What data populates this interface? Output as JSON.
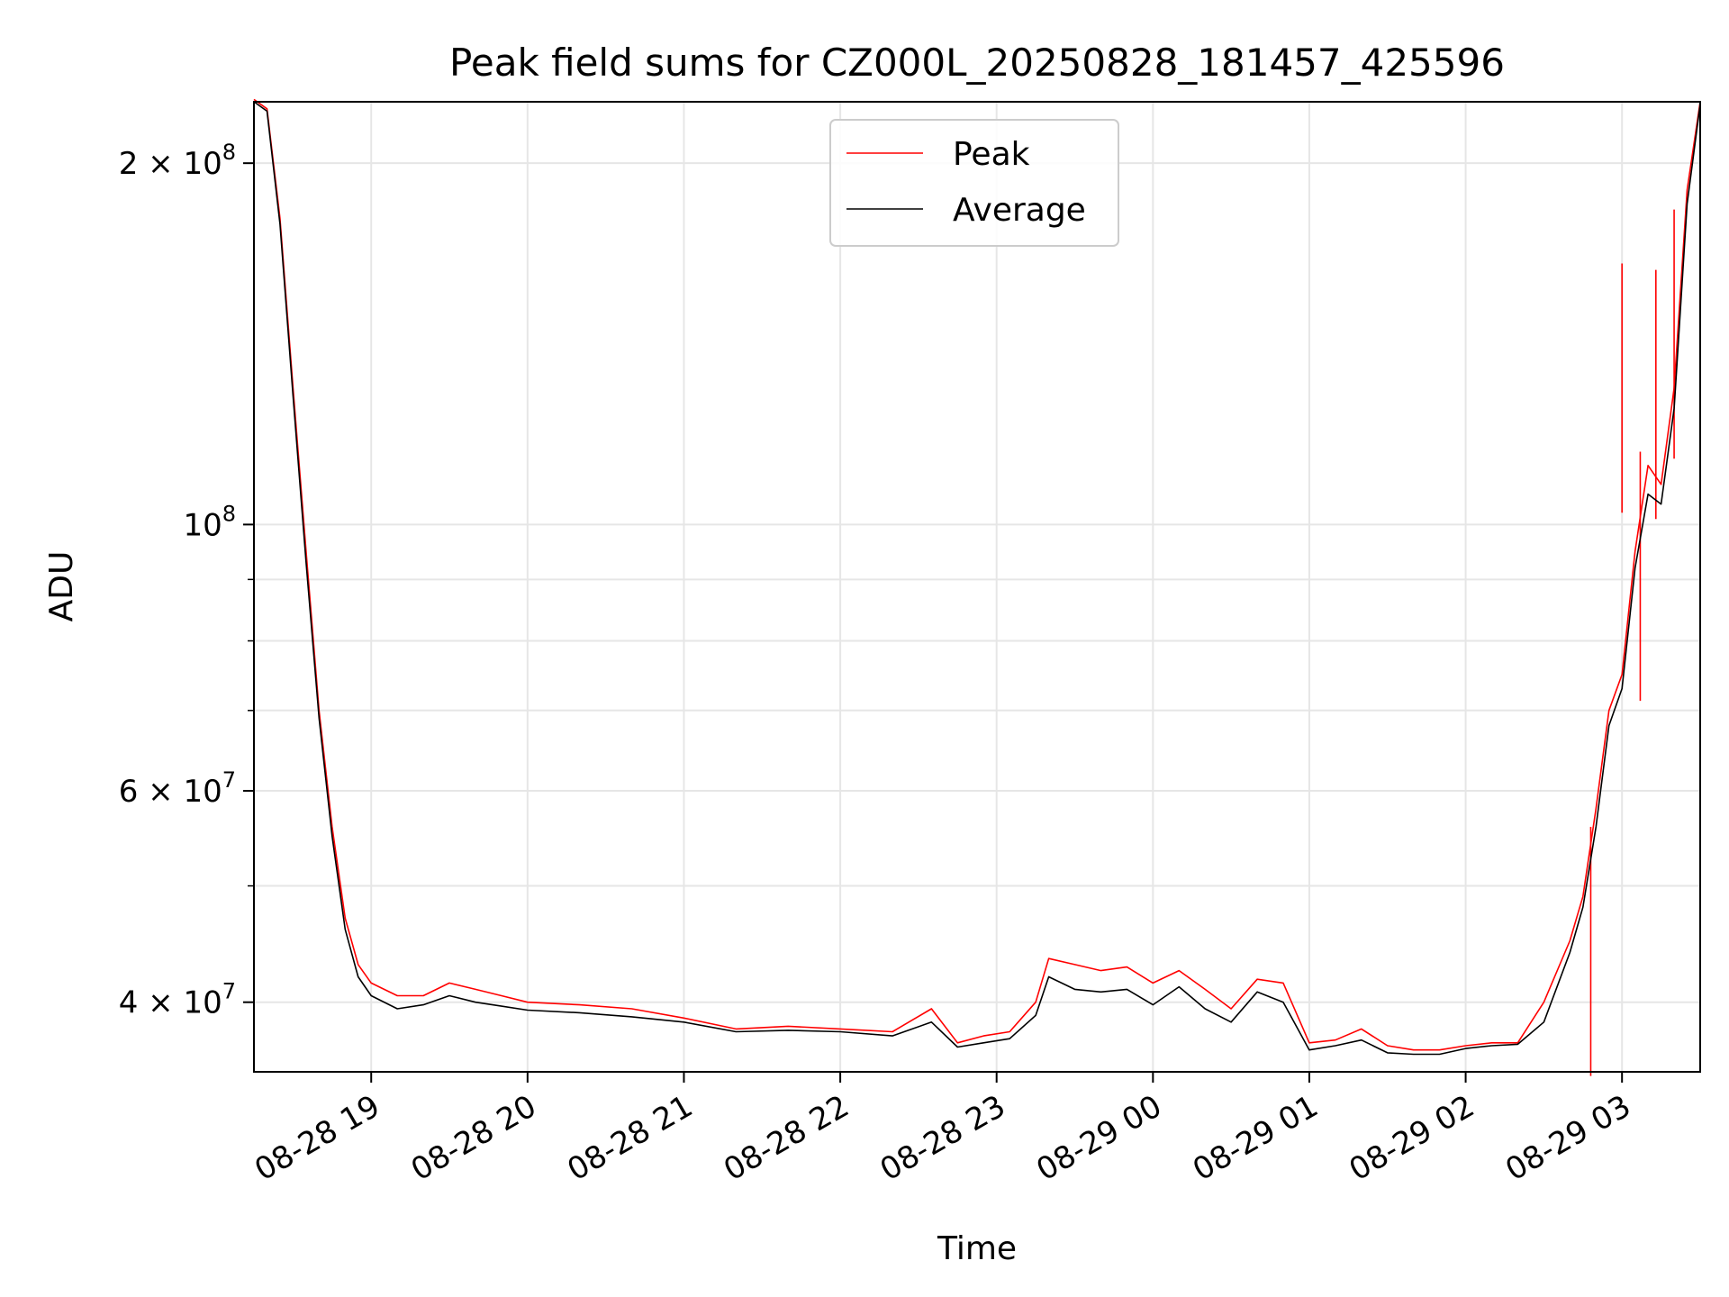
{
  "chart_data": {
    "type": "line",
    "title": "Peak field sums for CZ000L_20250828_181457_425596",
    "xlabel": "Time",
    "ylabel": "ADU",
    "x_range": [
      "2025-08-28 18:15",
      "2025-08-29 03:30"
    ],
    "y_scale": "log",
    "ylim": [
      35000000,
      225000000
    ],
    "grid": true,
    "legend_position": "top-center",
    "x_ticks": [
      {
        "value": "2025-08-28 19:00",
        "label": "08-28 19"
      },
      {
        "value": "2025-08-28 20:00",
        "label": "08-28 20"
      },
      {
        "value": "2025-08-28 21:00",
        "label": "08-28 21"
      },
      {
        "value": "2025-08-28 22:00",
        "label": "08-28 22"
      },
      {
        "value": "2025-08-28 23:00",
        "label": "08-28 23"
      },
      {
        "value": "2025-08-29 00:00",
        "label": "08-29 00"
      },
      {
        "value": "2025-08-29 01:00",
        "label": "08-29 01"
      },
      {
        "value": "2025-08-29 02:00",
        "label": "08-29 02"
      },
      {
        "value": "2025-08-29 03:00",
        "label": "08-29 03"
      }
    ],
    "y_ticks": [
      {
        "value": 40000000,
        "base": "4 × 10",
        "exp": "7"
      },
      {
        "value": 60000000,
        "base": "6 × 10",
        "exp": "7"
      },
      {
        "value": 100000000,
        "base": "10",
        "exp": "8"
      },
      {
        "value": 200000000,
        "base": "2 × 10",
        "exp": "8"
      }
    ],
    "y_minor_ticks": [
      50000000,
      70000000,
      80000000,
      90000000
    ],
    "series": [
      {
        "name": "Peak",
        "color": "#ff0000",
        "x": [
          "2025-08-28 18:15",
          "2025-08-28 18:20",
          "2025-08-28 18:25",
          "2025-08-28 18:30",
          "2025-08-28 18:35",
          "2025-08-28 18:40",
          "2025-08-28 18:45",
          "2025-08-28 18:50",
          "2025-08-28 18:55",
          "2025-08-28 19:00",
          "2025-08-28 19:10",
          "2025-08-28 19:20",
          "2025-08-28 19:30",
          "2025-08-28 19:40",
          "2025-08-28 19:50",
          "2025-08-28 20:00",
          "2025-08-28 20:20",
          "2025-08-28 20:40",
          "2025-08-28 21:00",
          "2025-08-28 21:20",
          "2025-08-28 21:40",
          "2025-08-28 22:00",
          "2025-08-28 22:20",
          "2025-08-28 22:35",
          "2025-08-28 22:45",
          "2025-08-28 22:55",
          "2025-08-28 23:05",
          "2025-08-28 23:15",
          "2025-08-28 23:20",
          "2025-08-28 23:30",
          "2025-08-28 23:40",
          "2025-08-28 23:50",
          "2025-08-29 00:00",
          "2025-08-29 00:10",
          "2025-08-29 00:20",
          "2025-08-29 00:30",
          "2025-08-29 00:40",
          "2025-08-29 00:50",
          "2025-08-29 01:00",
          "2025-08-29 01:10",
          "2025-08-29 01:20",
          "2025-08-29 01:30",
          "2025-08-29 01:40",
          "2025-08-29 01:50",
          "2025-08-29 02:00",
          "2025-08-29 02:10",
          "2025-08-29 02:20",
          "2025-08-29 02:30",
          "2025-08-29 02:40",
          "2025-08-29 02:45",
          "2025-08-29 02:50",
          "2025-08-29 02:55",
          "2025-08-29 03:00",
          "2025-08-29 03:05",
          "2025-08-29 03:10",
          "2025-08-29 03:15",
          "2025-08-29 03:20",
          "2025-08-29 03:25",
          "2025-08-29 03:30"
        ],
        "values": [
          226000000,
          222000000,
          180000000,
          130000000,
          95000000,
          70000000,
          56000000,
          47000000,
          43000000,
          41500000,
          40500000,
          40500000,
          41500000,
          41000000,
          40500000,
          40000000,
          39800000,
          39500000,
          38800000,
          38000000,
          38200000,
          38000000,
          37800000,
          39500000,
          37000000,
          37500000,
          37800000,
          40000000,
          43500000,
          43000000,
          42500000,
          42800000,
          41500000,
          42500000,
          41000000,
          39500000,
          41800000,
          41500000,
          37000000,
          37200000,
          38000000,
          36800000,
          36500000,
          36500000,
          36800000,
          37000000,
          37000000,
          40000000,
          45000000,
          49000000,
          58000000,
          70000000,
          75000000,
          95000000,
          112000000,
          108000000,
          130000000,
          190000000,
          225000000
        ],
        "spikes": [
          {
            "x": "2025-08-29 03:00",
            "value": 165000000
          },
          {
            "x": "2025-08-29 03:07",
            "value": 115000000
          },
          {
            "x": "2025-08-29 03:13",
            "value": 163000000
          },
          {
            "x": "2025-08-29 03:20",
            "value": 183000000
          },
          {
            "x": "2025-08-29 02:48",
            "value": 56000000
          }
        ]
      },
      {
        "name": "Average",
        "color": "#000000",
        "x": [
          "2025-08-28 18:15",
          "2025-08-28 18:20",
          "2025-08-28 18:25",
          "2025-08-28 18:30",
          "2025-08-28 18:35",
          "2025-08-28 18:40",
          "2025-08-28 18:45",
          "2025-08-28 18:50",
          "2025-08-28 18:55",
          "2025-08-28 19:00",
          "2025-08-28 19:10",
          "2025-08-28 19:20",
          "2025-08-28 19:30",
          "2025-08-28 19:40",
          "2025-08-28 19:50",
          "2025-08-28 20:00",
          "2025-08-28 20:20",
          "2025-08-28 20:40",
          "2025-08-28 21:00",
          "2025-08-28 21:20",
          "2025-08-28 21:40",
          "2025-08-28 22:00",
          "2025-08-28 22:20",
          "2025-08-28 22:35",
          "2025-08-28 22:45",
          "2025-08-28 22:55",
          "2025-08-28 23:05",
          "2025-08-28 23:15",
          "2025-08-28 23:20",
          "2025-08-28 23:30",
          "2025-08-28 23:40",
          "2025-08-28 23:50",
          "2025-08-29 00:00",
          "2025-08-29 00:10",
          "2025-08-29 00:20",
          "2025-08-29 00:30",
          "2025-08-29 00:40",
          "2025-08-29 00:50",
          "2025-08-29 01:00",
          "2025-08-29 01:10",
          "2025-08-29 01:20",
          "2025-08-29 01:30",
          "2025-08-29 01:40",
          "2025-08-29 01:50",
          "2025-08-29 02:00",
          "2025-08-29 02:10",
          "2025-08-29 02:20",
          "2025-08-29 02:30",
          "2025-08-29 02:40",
          "2025-08-29 02:45",
          "2025-08-29 02:50",
          "2025-08-29 02:55",
          "2025-08-29 03:00",
          "2025-08-29 03:05",
          "2025-08-29 03:10",
          "2025-08-29 03:15",
          "2025-08-29 03:20",
          "2025-08-29 03:25",
          "2025-08-29 03:30"
        ],
        "values": [
          225000000,
          221000000,
          178000000,
          128000000,
          93000000,
          69000000,
          55000000,
          46000000,
          42000000,
          40500000,
          39500000,
          39800000,
          40500000,
          40000000,
          39700000,
          39400000,
          39200000,
          38900000,
          38500000,
          37800000,
          37900000,
          37800000,
          37500000,
          38500000,
          36700000,
          37000000,
          37300000,
          39000000,
          42000000,
          41000000,
          40800000,
          41000000,
          39800000,
          41200000,
          39500000,
          38500000,
          40800000,
          40000000,
          36500000,
          36800000,
          37200000,
          36300000,
          36200000,
          36200000,
          36600000,
          36800000,
          36900000,
          38500000,
          44000000,
          48000000,
          56000000,
          68000000,
          73000000,
          92000000,
          106000000,
          104000000,
          125000000,
          185000000,
          224000000
        ]
      }
    ]
  }
}
